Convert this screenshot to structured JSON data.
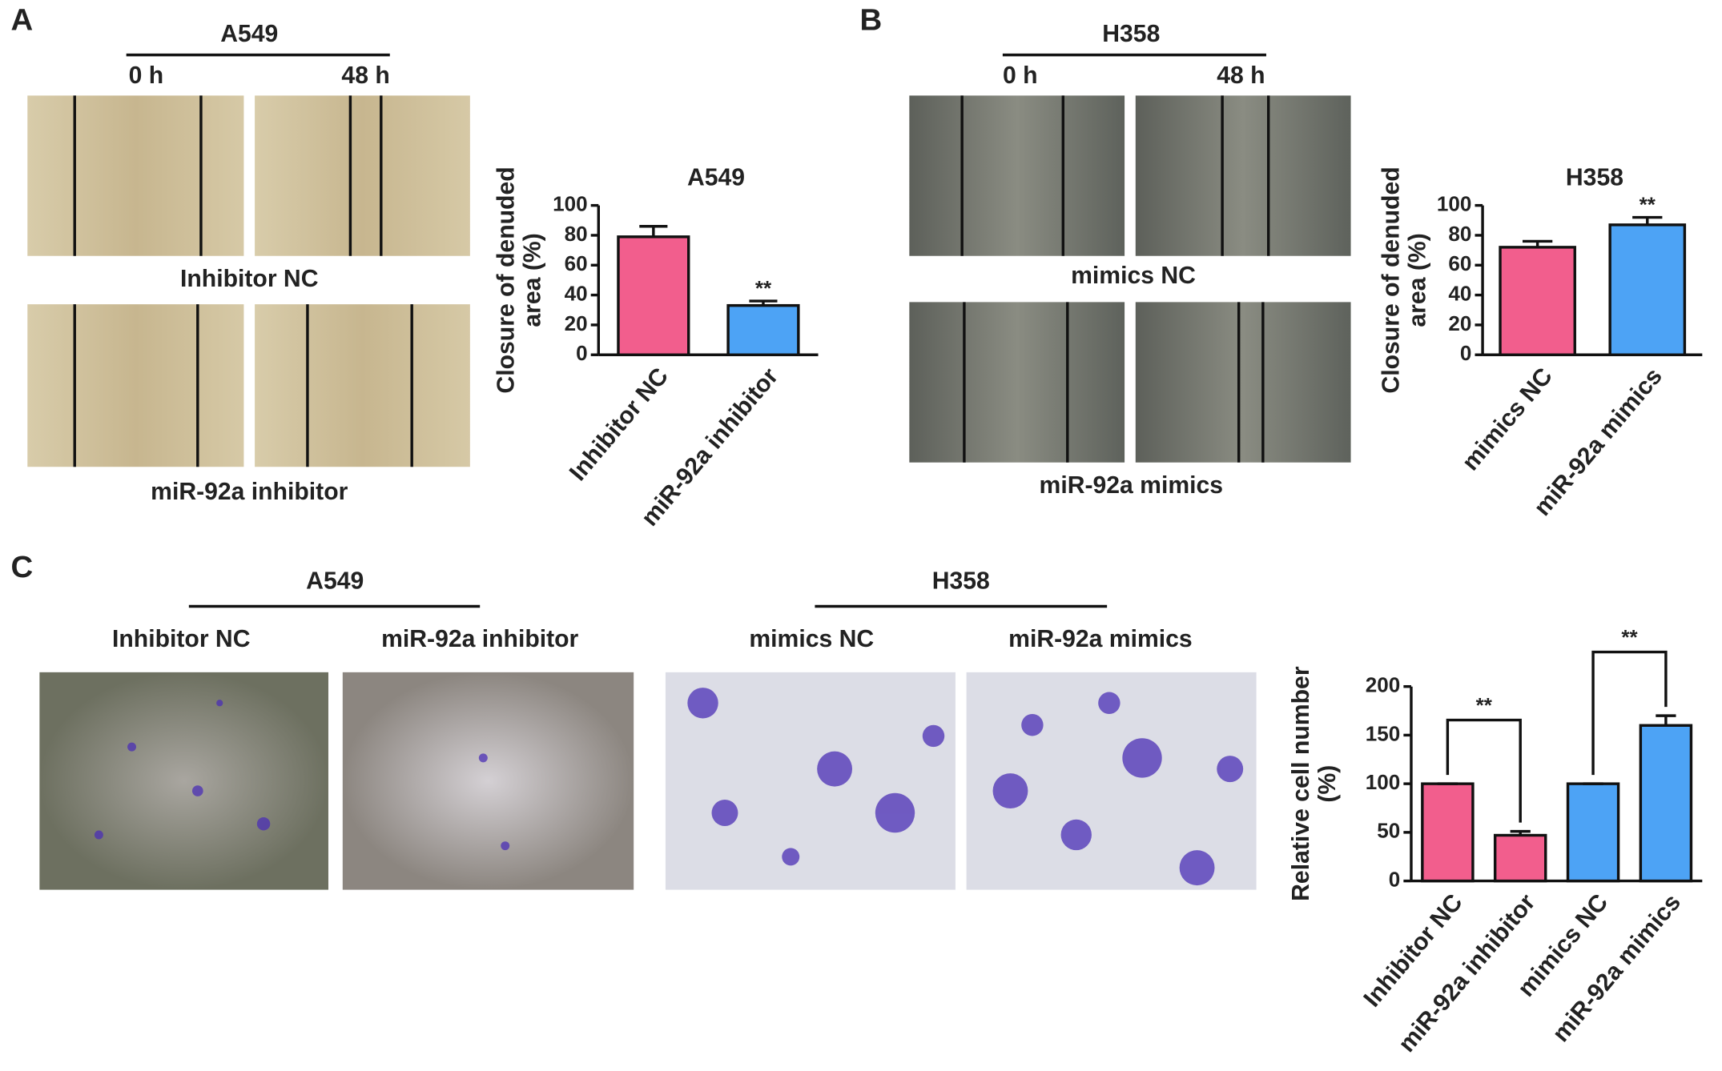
{
  "panels": {
    "labels": [
      "A",
      "B",
      "C"
    ]
  },
  "wound_a": {
    "cell_line": "A549",
    "times": [
      "0 h",
      "48 h"
    ],
    "rows": [
      "Inhibitor NC",
      "miR-92a inhibitor"
    ]
  },
  "wound_b": {
    "cell_line": "H358",
    "times": [
      "0 h",
      "48 h"
    ],
    "rows": [
      "mimics NC",
      "miR-92a mimics"
    ]
  },
  "transwell": {
    "groups": [
      {
        "title": "A549",
        "labels": [
          "Inhibitor NC",
          "miR-92a inhibitor"
        ]
      },
      {
        "title": "H358",
        "labels": [
          "mimics NC",
          "miR-92a mimics"
        ]
      }
    ]
  },
  "chart_data": [
    {
      "type": "bar",
      "title": "A549",
      "ylabel": [
        "Closure of denuded",
        "area (%)"
      ],
      "categories": [
        "Inhibitor NC",
        "miR-92a inhibitor"
      ],
      "values": [
        79,
        33
      ],
      "errors": [
        7,
        3
      ],
      "colors": [
        "#f25e8d",
        "#4da3f5"
      ],
      "ylim": [
        0,
        100
      ],
      "yticks": [
        0,
        20,
        40,
        60,
        80,
        100
      ],
      "annotations": [
        "**"
      ]
    },
    {
      "type": "bar",
      "title": "H358",
      "ylabel": [
        "Closure of denuded",
        "area (%)"
      ],
      "categories": [
        "mimics NC",
        "miR-92a mimics"
      ],
      "values": [
        72,
        87
      ],
      "errors": [
        4,
        5
      ],
      "colors": [
        "#f25e8d",
        "#4da3f5"
      ],
      "ylim": [
        0,
        100
      ],
      "yticks": [
        0,
        20,
        40,
        60,
        80,
        100
      ],
      "annotations": [
        "**"
      ]
    },
    {
      "type": "bar",
      "ylabel": [
        "Relative cell number",
        "(%)"
      ],
      "categories": [
        "Inhibitor NC",
        "miR-92a inhibitor",
        "mimics NC",
        "miR-92a mimics"
      ],
      "values": [
        100,
        47,
        100,
        160
      ],
      "errors": [
        0,
        4,
        0,
        10
      ],
      "colors": [
        "#f25e8d",
        "#f25e8d",
        "#4da3f5",
        "#4da3f5"
      ],
      "ylim": [
        0,
        200
      ],
      "yticks": [
        0,
        50,
        100,
        150,
        200
      ],
      "annotations": [
        "**",
        "**"
      ]
    }
  ]
}
